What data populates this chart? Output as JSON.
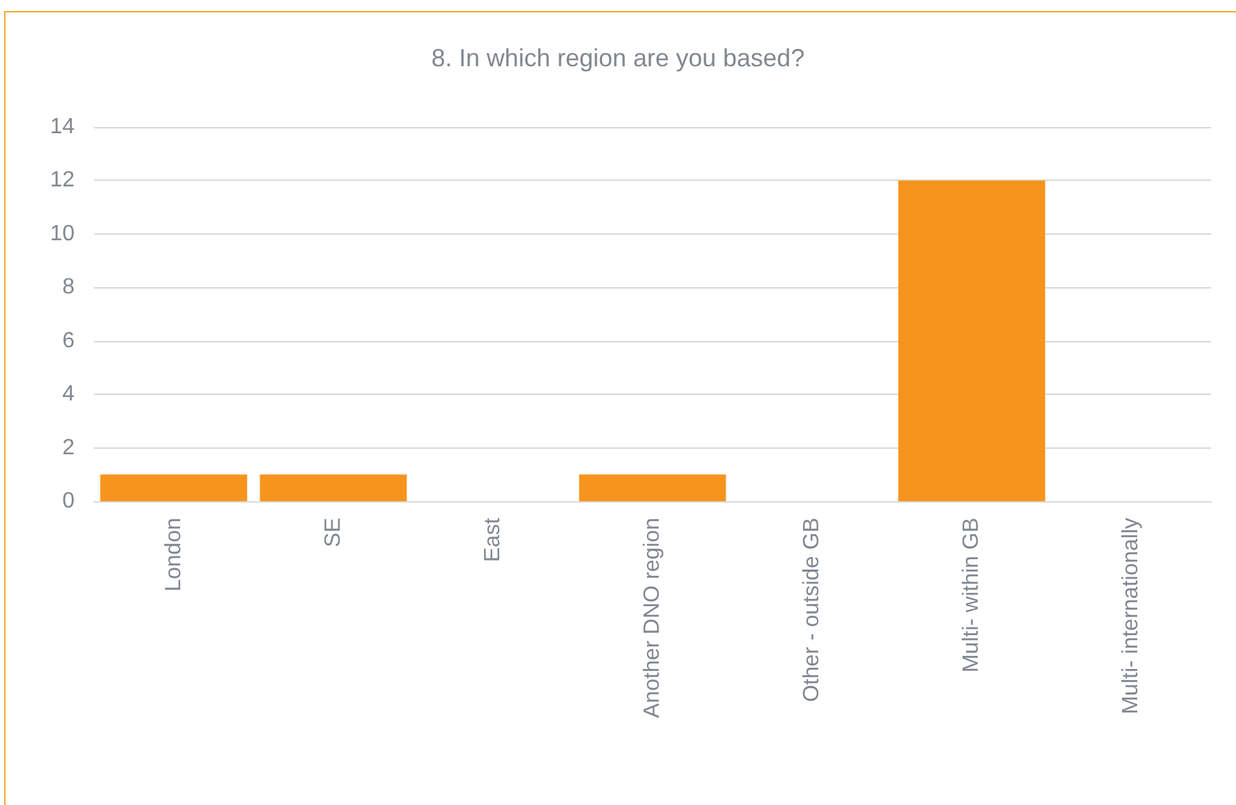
{
  "chart_data": {
    "type": "bar",
    "title": "8. In which region are you based?",
    "categories": [
      "London",
      "SE",
      "East",
      "Another DNO region",
      "Other - outside GB",
      "Multi- within GB",
      "Multi- internationally"
    ],
    "values": [
      1,
      1,
      0,
      1,
      0,
      12,
      0
    ],
    "color": "#f7941d",
    "ylim": [
      0,
      14
    ],
    "yticks": [
      0,
      2,
      4,
      6,
      8,
      10,
      12,
      14
    ],
    "grid": "y"
  }
}
